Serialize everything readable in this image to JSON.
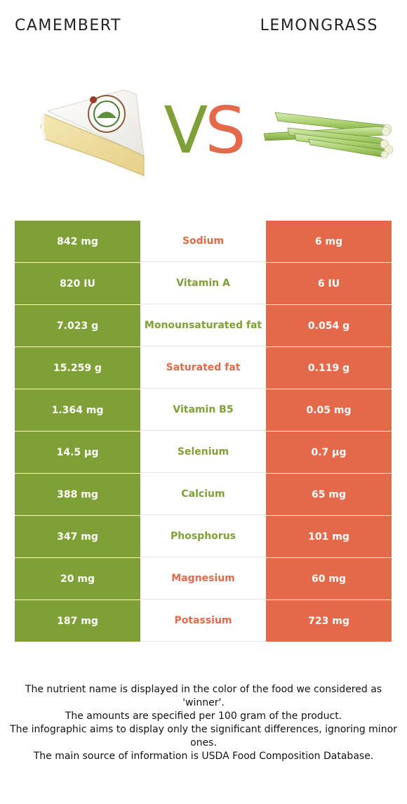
{
  "foods": {
    "left_name": "CAMEMBERT",
    "right_name": "LEMONGRASS"
  },
  "vs": {
    "v": "V",
    "s": "S"
  },
  "colors": {
    "left_food": "#7ea037",
    "right_food": "#e4694a"
  },
  "rows": [
    {
      "left": "842 mg",
      "nutrient": "Sodium",
      "right": "6 mg",
      "winner": "right"
    },
    {
      "left": "820 IU",
      "nutrient": "Vitamin A",
      "right": "6 IU",
      "winner": "left"
    },
    {
      "left": "7.023 g",
      "nutrient": "Monounsaturated fat",
      "right": "0.054 g",
      "winner": "left"
    },
    {
      "left": "15.259 g",
      "nutrient": "Saturated fat",
      "right": "0.119 g",
      "winner": "right"
    },
    {
      "left": "1.364 mg",
      "nutrient": "Vitamin B5",
      "right": "0.05 mg",
      "winner": "left"
    },
    {
      "left": "14.5 µg",
      "nutrient": "Selenium",
      "right": "0.7 µg",
      "winner": "left"
    },
    {
      "left": "388 mg",
      "nutrient": "Calcium",
      "right": "65 mg",
      "winner": "left"
    },
    {
      "left": "347 mg",
      "nutrient": "Phosphorus",
      "right": "101 mg",
      "winner": "left"
    },
    {
      "left": "20 mg",
      "nutrient": "Magnesium",
      "right": "60 mg",
      "winner": "right"
    },
    {
      "left": "187 mg",
      "nutrient": "Potassium",
      "right": "723 mg",
      "winner": "right"
    }
  ],
  "footer": [
    "The nutrient name is displayed in the color of the food we considered as 'winner'.",
    "The amounts are specified per 100 gram of the product.",
    "The infographic aims to display only the significant differences, ignoring minor ones.",
    "The main source of information is USDA Food Composition Database."
  ]
}
